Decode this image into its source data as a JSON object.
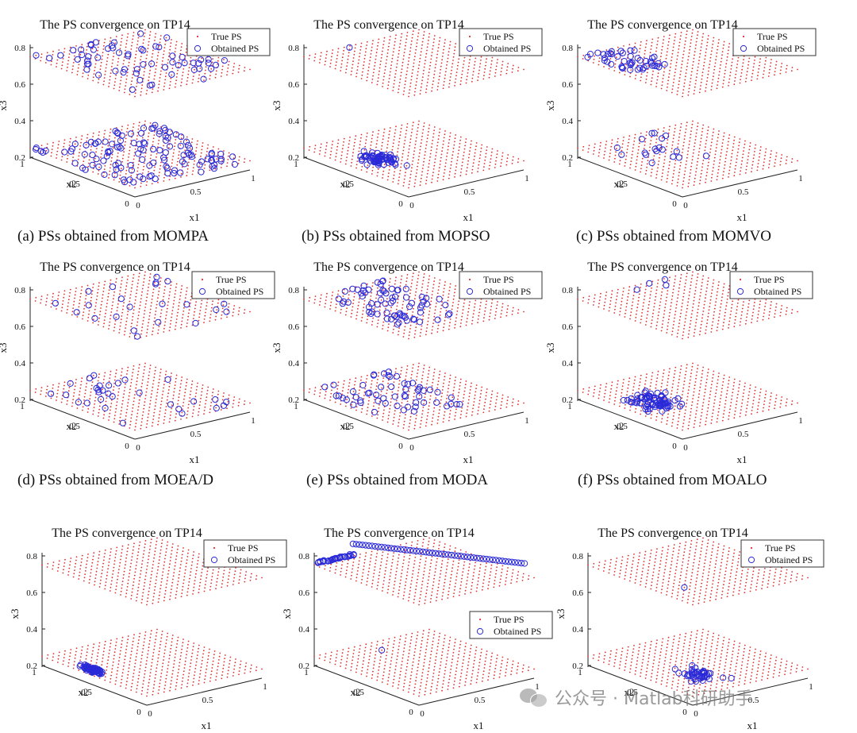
{
  "legend": {
    "true_ps": "True PS",
    "obtained_ps": "Obtained PS"
  },
  "colors": {
    "true_ps": "#e03030",
    "obtained_ps": "#2a2ad8",
    "axis": "#222222"
  },
  "axes": {
    "xlabel": "x1",
    "ylabel": "x2",
    "zlabel": "x3",
    "xticks": [
      "0",
      "0.5",
      "1"
    ],
    "yticks": [
      "0",
      "0.5",
      "1"
    ],
    "zticks": [
      "0.2",
      "0.4",
      "0.6",
      "0.8"
    ]
  },
  "watermark": "公众号 · Matlab科研助手",
  "chart_data": [
    {
      "type": "scatter",
      "title": "The PS convergence on TP14",
      "caption": "(a) PSs obtained from MOMPA",
      "xlim": [
        0,
        1
      ],
      "ylim": [
        0,
        1
      ],
      "zlim": [
        0.2,
        0.8
      ],
      "true_ps_planes": [
        0.25,
        0.75
      ],
      "series": [
        {
          "name": "Obtained PS",
          "distribution": "spread over both planes",
          "count_upper": 60,
          "count_lower": 120
        }
      ]
    },
    {
      "type": "scatter",
      "title": "The PS convergence on TP14",
      "caption": "(b) PSs obtained from MOPSO",
      "xlim": [
        0,
        1
      ],
      "ylim": [
        0,
        1
      ],
      "zlim": [
        0.2,
        0.8
      ],
      "true_ps_planes": [
        0.25,
        0.75
      ],
      "series": [
        {
          "name": "Obtained PS",
          "distribution": "cluster on lower plane",
          "count_upper": 1,
          "count_lower": 70
        }
      ]
    },
    {
      "type": "scatter",
      "title": "The PS convergence on TP14",
      "caption": "(c) PSs obtained from MOMVO",
      "xlim": [
        0,
        1
      ],
      "ylim": [
        0,
        1
      ],
      "zlim": [
        0.2,
        0.8
      ],
      "true_ps_planes": [
        0.25,
        0.75
      ],
      "series": [
        {
          "name": "Obtained PS",
          "distribution": "mostly upper plane back edge",
          "count_upper": 45,
          "count_lower": 18
        }
      ]
    },
    {
      "type": "scatter",
      "title": "The PS convergence on TP14",
      "caption": "(d) PSs obtained from MOEA/D",
      "xlim": [
        0,
        1
      ],
      "ylim": [
        0,
        1
      ],
      "zlim": [
        0.2,
        0.8
      ],
      "true_ps_planes": [
        0.25,
        0.75
      ],
      "series": [
        {
          "name": "Obtained PS",
          "distribution": "sparse on both planes",
          "count_upper": 22,
          "count_lower": 30
        }
      ]
    },
    {
      "type": "scatter",
      "title": "The PS convergence on TP14",
      "caption": "(e) PSs obtained from MODA",
      "xlim": [
        0,
        1
      ],
      "ylim": [
        0,
        1
      ],
      "zlim": [
        0.2,
        0.8
      ],
      "true_ps_planes": [
        0.25,
        0.75
      ],
      "series": [
        {
          "name": "Obtained PS",
          "distribution": "spread with some off-plane",
          "count_upper": 70,
          "count_lower": 55
        }
      ]
    },
    {
      "type": "scatter",
      "title": "The PS convergence on TP14",
      "caption": "(f) PSs obtained from MOALO",
      "xlim": [
        0,
        1
      ],
      "ylim": [
        0,
        1
      ],
      "zlim": [
        0.2,
        0.8
      ],
      "true_ps_planes": [
        0.25,
        0.75
      ],
      "series": [
        {
          "name": "Obtained PS",
          "distribution": "mostly lower plane",
          "count_upper": 4,
          "count_lower": 80
        }
      ]
    },
    {
      "type": "scatter",
      "title": "The PS convergence on TP14",
      "caption": "",
      "xlim": [
        0,
        1
      ],
      "ylim": [
        0,
        1
      ],
      "zlim": [
        0.2,
        0.8
      ],
      "true_ps_planes": [
        0.25,
        0.75
      ],
      "series": [
        {
          "name": "Obtained PS",
          "distribution": "tight cluster on lower plane",
          "count_upper": 0,
          "count_lower": 70
        }
      ]
    },
    {
      "type": "scatter",
      "title": "The PS convergence on TP14",
      "caption": "",
      "xlim": [
        0,
        1
      ],
      "ylim": [
        0,
        1
      ],
      "zlim": [
        0.2,
        0.8
      ],
      "true_ps_planes": [
        0.25,
        0.75
      ],
      "series": [
        {
          "name": "Obtained PS",
          "distribution": "line along upper plane back edge",
          "count_upper": 85,
          "count_lower": 1
        }
      ]
    },
    {
      "type": "scatter",
      "title": "The PS convergence on TP14",
      "caption": "",
      "xlim": [
        0,
        1
      ],
      "ylim": [
        0,
        1
      ],
      "zlim": [
        0.2,
        0.8
      ],
      "true_ps_planes": [
        0.25,
        0.75
      ],
      "series": [
        {
          "name": "Obtained PS",
          "distribution": "cluster on lower plane",
          "count_upper": 1,
          "count_lower": 45
        }
      ]
    }
  ]
}
